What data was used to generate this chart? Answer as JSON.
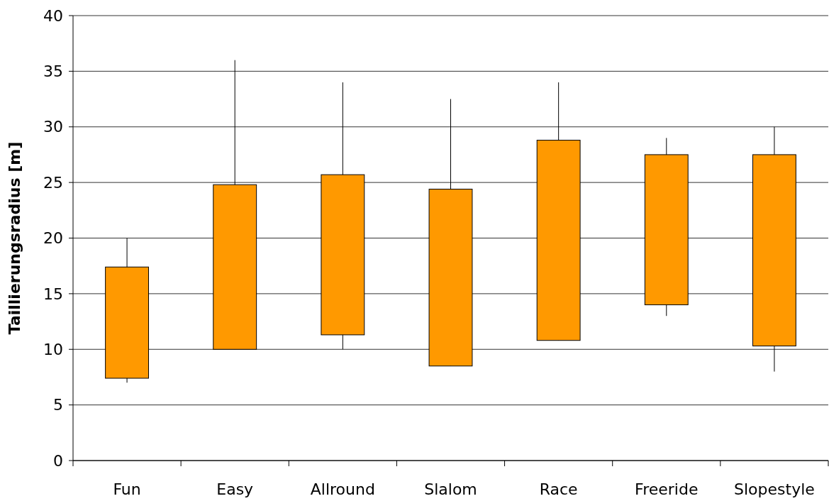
{
  "chart_data": {
    "type": "candlestick",
    "ylabel": "Taillierungsradius [m]",
    "categories": [
      "Fun",
      "Easy",
      "Allround",
      "Slalom",
      "Race",
      "Freeride",
      "Slopestyle"
    ],
    "ohlc": [
      [
        7.4,
        20,
        7,
        17.4
      ],
      [
        10,
        36,
        10,
        24.8
      ],
      [
        11.3,
        34,
        10,
        25.7
      ],
      [
        8.5,
        32.5,
        8.5,
        24.4
      ],
      [
        10.8,
        34,
        10.8,
        28.8
      ],
      [
        14,
        29,
        13,
        27.5
      ],
      [
        10.3,
        30,
        8,
        27.5
      ]
    ],
    "color": "#ff9900",
    "ylim": [
      0,
      40
    ],
    "yticks": [
      0,
      5,
      10,
      15,
      20,
      25,
      30,
      35,
      40
    ],
    "grid": "y"
  }
}
